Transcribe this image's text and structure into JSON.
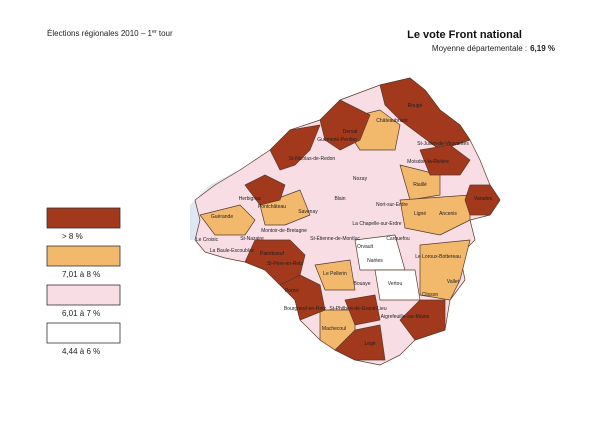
{
  "header": {
    "election": "Élections régionales 2010 – 1",
    "superscript": "er",
    "round": "tour",
    "title": "Le vote Front national",
    "average_label": "Moyenne départementale :",
    "average_value": "6,19 %"
  },
  "legend": {
    "items": [
      {
        "label": "> 8 %",
        "color": "#a3391c"
      },
      {
        "label": "7,01 à 8 %",
        "color": "#f2b86c"
      },
      {
        "label": "6,01 à 7 %",
        "color": "#f8dde5"
      },
      {
        "label": "4,44 à 6 %",
        "color": "#ffffff"
      }
    ]
  },
  "map": {
    "labels": [
      "Rougé",
      "Châteaubriant",
      "Derval",
      "Guémené-Penfao",
      "St-Julien-de-Vouvantes",
      "St-Nicolas-de-Redon",
      "Moisdon-la-Rivière",
      "Nozay",
      "Riaillé",
      "Herbignac",
      "Pontchâteau",
      "Blain",
      "Nort-sur-Erdre",
      "Varades",
      "Guérande",
      "Savenay",
      "Ligné",
      "Ancenis",
      "Montoir-de-Bretagne",
      "La Chapelle-sur-Erdre",
      "St-Étienne-de-Montluc",
      "Carquefou",
      "St-Nazaire",
      "La Baule-Escoublac",
      "Le Croisic",
      "Orvault",
      "Nantes",
      "Le Loroux-Bottereau",
      "St-Père-en-Retz",
      "Paimboeuf",
      "Le Pellerin",
      "Vertou",
      "Clisson",
      "Vallet",
      "Pornic",
      "Bouaye",
      "Bourgneuf-en-Retz",
      "St-Philbert-de-Grand-Lieu",
      "Aigrefeuille-sur-Maine",
      "Machecoul",
      "Legé"
    ]
  }
}
